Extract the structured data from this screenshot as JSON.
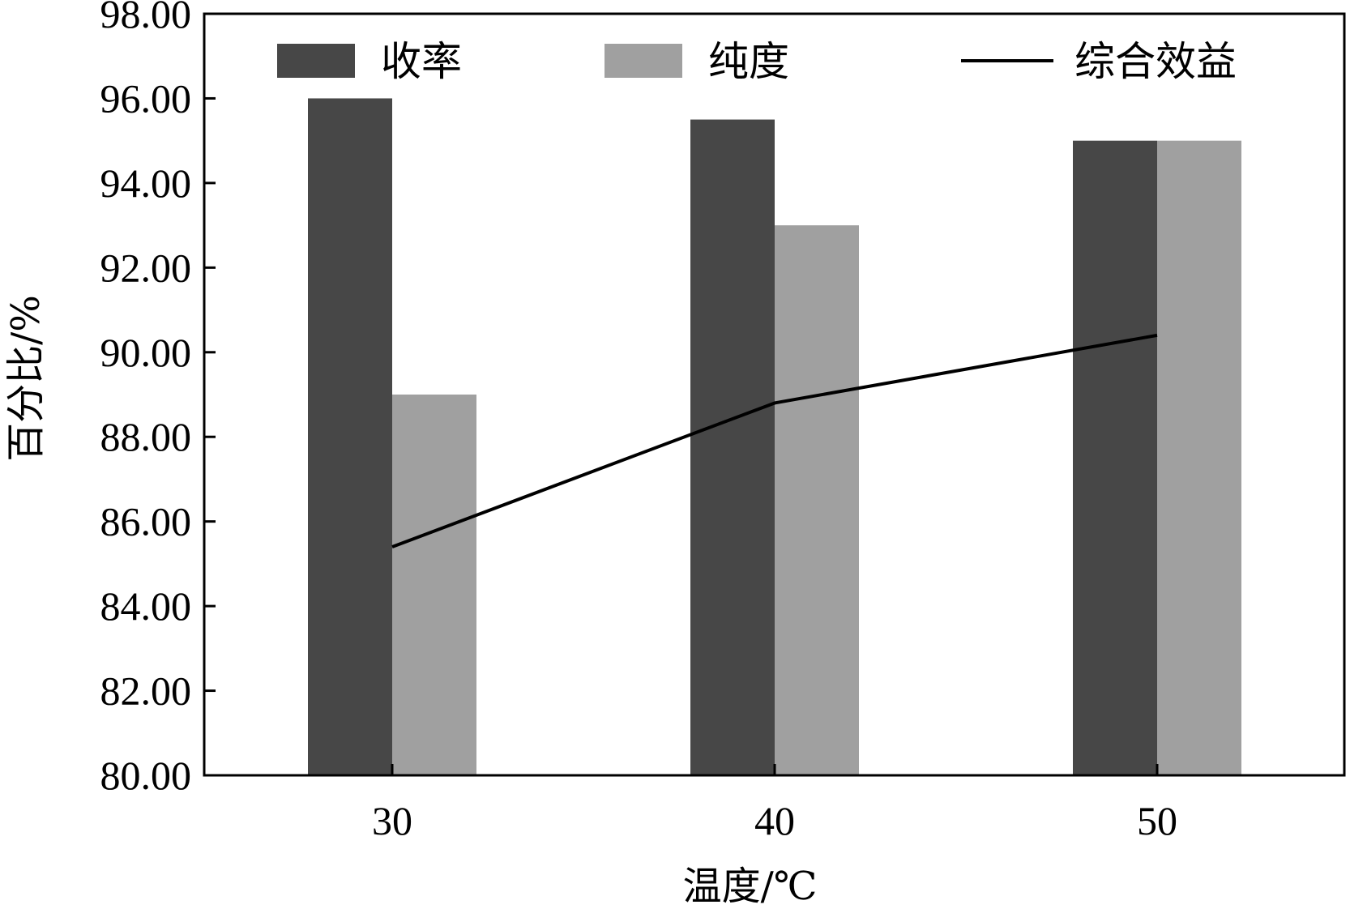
{
  "chart_data": {
    "type": "bar",
    "xlabel": "温度/℃",
    "ylabel": "百分比/%",
    "ylim": [
      80,
      98
    ],
    "yticks": [
      "80.00",
      "82.00",
      "84.00",
      "86.00",
      "88.00",
      "90.00",
      "92.00",
      "94.00",
      "96.00",
      "98.00"
    ],
    "categories": [
      "30",
      "40",
      "50"
    ],
    "series": [
      {
        "name": "收率",
        "kind": "bar",
        "color": "#474747",
        "values": [
          96.0,
          95.5,
          95.0
        ]
      },
      {
        "name": "纯度",
        "kind": "bar",
        "color": "#a0a0a0",
        "values": [
          89.0,
          93.0,
          95.0
        ]
      },
      {
        "name": "综合效益",
        "kind": "line",
        "color": "#000000",
        "values": [
          85.4,
          88.8,
          90.4
        ]
      }
    ],
    "grid": false,
    "legend": "top"
  }
}
